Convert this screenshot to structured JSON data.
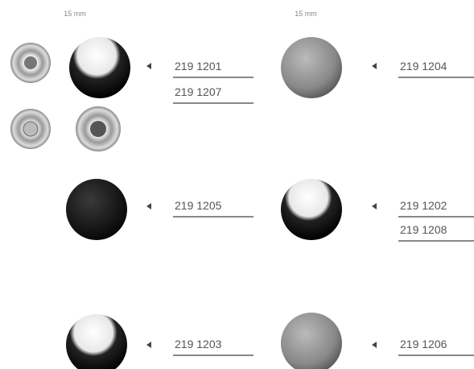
{
  "columns": [
    {
      "size_label": "15 mm"
    },
    {
      "size_label": "15 mm"
    }
  ],
  "rows": [
    {
      "left_codes": [
        "219 1201",
        "219 1207"
      ],
      "right_codes": [
        "219 1204"
      ]
    },
    {
      "left_codes": [
        "219 1205"
      ],
      "right_codes": [
        "219 1202",
        "219 1208"
      ]
    },
    {
      "left_codes": [
        "219 1203"
      ],
      "right_codes": [
        "219 1206"
      ]
    }
  ]
}
